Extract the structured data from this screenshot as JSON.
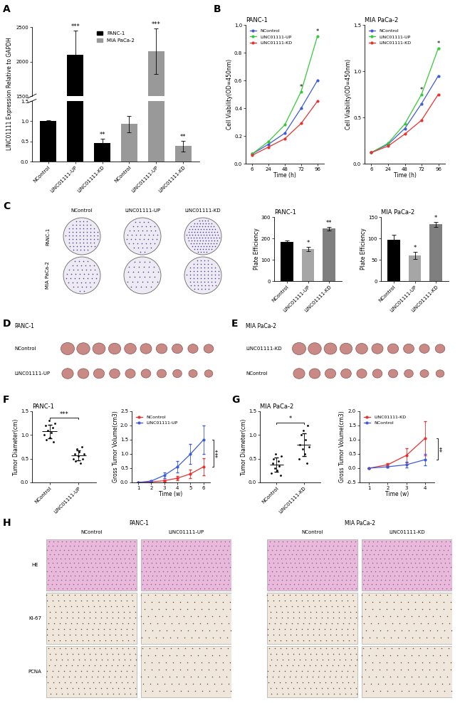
{
  "chart_data": [
    {
      "panel": "A",
      "type": "bar",
      "y_label": "LINC01111 Expression Relative to GAPDH",
      "categories": [
        "NControl",
        "LINC01111-UP",
        "LINC01111-KD",
        "NControl",
        "LINC01111-UP",
        "LINC01111-KD"
      ],
      "series": [
        {
          "name": "PANC-1",
          "color": "#000000",
          "values": [
            1.0,
            2100,
            0.45,
            null,
            null,
            null
          ],
          "errors": [
            0.02,
            350,
            0.12,
            null,
            null,
            null
          ]
        },
        {
          "name": "MIA PaCa-2",
          "color": "#999999",
          "values": [
            null,
            null,
            null,
            0.93,
            2150,
            0.38
          ],
          "errors": [
            null,
            null,
            null,
            0.2,
            330,
            0.14
          ]
        }
      ],
      "annotations": [
        null,
        "***",
        "**",
        null,
        "***",
        "**"
      ],
      "ylim": [
        0,
        2500
      ],
      "yticks": [
        0.0,
        0.5,
        1.0,
        1.5,
        1500,
        2000,
        2500
      ],
      "legend": "upper center"
    },
    {
      "panel": "B",
      "type": "line",
      "title": "PANC-1",
      "x_label": "Time (h)",
      "y_label": "Cell Viability(OD=450nm)",
      "categories": [
        "6",
        "24",
        "48",
        "72",
        "96"
      ],
      "marker": "o",
      "series": [
        {
          "name": "NControl",
          "color": "#3b5bdb",
          "values": [
            0.07,
            0.14,
            0.22,
            0.4,
            0.6
          ]
        },
        {
          "name": "LINC01111-UP",
          "color": "#37c837",
          "values": [
            0.07,
            0.16,
            0.28,
            0.52,
            0.92
          ]
        },
        {
          "name": "LINC01111-KD",
          "color": "#e8312f",
          "values": [
            0.06,
            0.12,
            0.18,
            0.29,
            0.45
          ]
        }
      ],
      "annotations": [
        null,
        null,
        null,
        "*",
        "*"
      ],
      "ylim": [
        0.0,
        1.0
      ],
      "yticks": [
        0.0,
        0.2,
        0.4,
        0.6,
        0.8,
        1.0
      ],
      "legend": "upper left"
    },
    {
      "type": "line",
      "title": "MIA PaCa-2",
      "x_label": "Time (h)",
      "y_label": "Cell Viability(OD=450nm)",
      "categories": [
        "6",
        "24",
        "48",
        "72",
        "96"
      ],
      "marker": "o",
      "series": [
        {
          "name": "NControl",
          "color": "#3b5bdb",
          "values": [
            0.12,
            0.21,
            0.38,
            0.65,
            0.95
          ]
        },
        {
          "name": "LINC01111-UP",
          "color": "#37c837",
          "values": [
            0.12,
            0.22,
            0.43,
            0.75,
            1.25
          ]
        },
        {
          "name": "LINC01111-KD",
          "color": "#e8312f",
          "values": [
            0.12,
            0.19,
            0.32,
            0.47,
            0.75
          ]
        }
      ],
      "annotations": [
        null,
        null,
        null,
        "*",
        "*"
      ],
      "ylim": [
        0.0,
        1.5
      ],
      "yticks": [
        0.0,
        0.5,
        1.0,
        1.5
      ],
      "legend": "upper left"
    },
    {
      "panel": "C",
      "type": "bar",
      "title": "PANC-1",
      "y_label": "Plate Efficiency",
      "categories": [
        "NControl",
        "LINC01111-UP",
        "LINC01111-KD"
      ],
      "values": [
        183,
        150,
        245
      ],
      "errors": [
        7,
        10,
        8
      ],
      "colors": [
        "#000000",
        "#a6a6a6",
        "#7f7f7f"
      ],
      "annotations": [
        null,
        "*",
        "**"
      ],
      "ylim": [
        0,
        300
      ],
      "yticks": [
        0,
        100,
        200,
        300
      ]
    },
    {
      "type": "bar",
      "title": "MIA PaCa-2",
      "y_label": "Plate Efficiency",
      "categories": [
        "NControl",
        "LINC01111-UP",
        "LINC01111-KD"
      ],
      "values": [
        97,
        60,
        133
      ],
      "errors": [
        12,
        9,
        6
      ],
      "colors": [
        "#000000",
        "#a6a6a6",
        "#7f7f7f"
      ],
      "annotations": [
        null,
        "*",
        "*"
      ],
      "ylim": [
        0,
        150
      ],
      "yticks": [
        0,
        50,
        100,
        150
      ]
    },
    {
      "panel": "F",
      "type": "scatter",
      "title": "PANC-1",
      "y_label": "Tumor Diameter(cm)",
      "categories": [
        "NControl",
        "LINC01111-UP"
      ],
      "values": [
        [
          1.0,
          1.2,
          0.9,
          1.1,
          1.3,
          0.95,
          1.05,
          1.15,
          0.85,
          1.25
        ],
        [
          0.5,
          0.6,
          0.45,
          0.7,
          0.55,
          0.65,
          0.4,
          0.75,
          0.5,
          0.6
        ]
      ],
      "color": "#000000",
      "marker": "o",
      "annotation": "***",
      "ylim": [
        0.0,
        1.5
      ],
      "yticks": [
        0.0,
        0.5,
        1.0,
        1.5
      ]
    },
    {
      "type": "line",
      "x_label": "Time (w)",
      "y_label": "Gross Tumor Volume(cm3)",
      "x": [
        1,
        2,
        3,
        4,
        5,
        6
      ],
      "xlim": [
        0.5,
        6.5
      ],
      "xticks": [
        1,
        2,
        3,
        4,
        5,
        6
      ],
      "marker": "o",
      "series": [
        {
          "name": "NControl",
          "color": "#e8312f",
          "values": [
            0.0,
            0.02,
            0.06,
            0.15,
            0.3,
            0.55
          ],
          "errors": [
            0.0,
            0.01,
            0.03,
            0.08,
            0.15,
            0.3
          ]
        },
        {
          "name": "LINC01111-UP",
          "color": "#3b5bdb",
          "values": [
            0.0,
            0.05,
            0.25,
            0.55,
            1.0,
            1.5
          ],
          "errors": [
            0.0,
            0.03,
            0.1,
            0.2,
            0.35,
            0.5
          ]
        }
      ],
      "annotation": "***",
      "ylim": [
        0.0,
        2.5
      ],
      "yticks": [
        0.0,
        0.5,
        1.0,
        1.5,
        2.0,
        2.5
      ],
      "legend": "upper left"
    },
    {
      "panel": "G",
      "type": "scatter",
      "title": "MIA PaCa-2",
      "y_label": "Tumor Diameter(cm)",
      "categories": [
        "NControl",
        "LINC01111-KD"
      ],
      "values": [
        [
          0.2,
          0.4,
          0.5,
          0.3,
          0.6,
          0.25,
          0.45,
          0.35,
          0.15,
          0.55
        ],
        [
          0.5,
          0.8,
          1.0,
          0.7,
          1.1,
          0.6,
          0.9,
          0.4,
          1.2,
          0.75
        ]
      ],
      "color": "#000000",
      "marker": "o",
      "annotation": "*",
      "ylim": [
        0.0,
        1.5
      ],
      "yticks": [
        0.0,
        0.5,
        1.0,
        1.5
      ]
    },
    {
      "type": "line",
      "x_label": "Time (w)",
      "y_label": "Gross Tumor Volume(cm3)",
      "x": [
        1,
        2,
        3,
        4
      ],
      "xlim": [
        0.5,
        4.5
      ],
      "xticks": [
        1,
        2,
        3,
        4
      ],
      "marker": "o",
      "series": [
        {
          "name": "LINC01111-KD",
          "color": "#e8312f",
          "values": [
            0.0,
            0.12,
            0.45,
            1.05
          ],
          "errors": [
            0.0,
            0.05,
            0.25,
            0.6
          ]
        },
        {
          "name": "NControl",
          "color": "#3b5bdb",
          "values": [
            0.0,
            0.05,
            0.12,
            0.3
          ],
          "errors": [
            0.0,
            0.03,
            0.1,
            0.2
          ]
        }
      ],
      "annotation": "**",
      "ylim": [
        -0.5,
        2.0
      ],
      "yticks": [
        -0.5,
        0.0,
        0.5,
        1.0,
        1.5,
        2.0
      ],
      "legend": "upper left"
    }
  ],
  "images": {
    "C": {
      "rows": [
        "PANC-1",
        "MIA PaCa-2"
      ],
      "columns": [
        "NControl",
        "LINC01111-UP",
        "LINC01111-KD"
      ]
    },
    "D": {
      "panel": "D",
      "title": "PANC-1",
      "rows": [
        "NControl",
        "LINC01111-UP"
      ]
    },
    "E": {
      "panel": "E",
      "title": "MIA PaCa-2",
      "rows": [
        "LINC01111-KD",
        "NControl"
      ]
    },
    "H": {
      "panel": "H",
      "rows": [
        "HE",
        "Ki-67",
        "PCNA"
      ],
      "groups": [
        {
          "title": "PANC-1",
          "columns": [
            "NControl",
            "LINC01111-UP"
          ]
        },
        {
          "title": "MIA PaCa-2",
          "columns": [
            "NControl",
            "LINC01111-KD"
          ]
        }
      ]
    }
  }
}
